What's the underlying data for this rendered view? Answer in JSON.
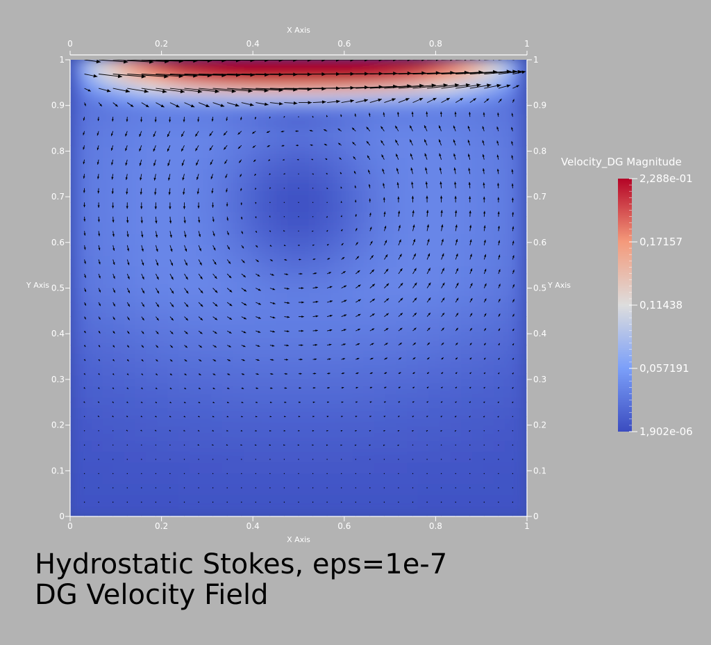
{
  "chart_data": {
    "type": "heatmap",
    "description_series": "velocity magnitude with glyph arrows",
    "title": "",
    "xlabel": "X Axis",
    "ylabel": "Y Axis",
    "xlim": [
      0,
      1
    ],
    "ylim": [
      0,
      1
    ],
    "x_ticks": [
      "0",
      "0.2",
      "0.4",
      "0.6",
      "0.8",
      "1"
    ],
    "y_ticks": [
      "0",
      "0.1",
      "0.2",
      "0.3",
      "0.4",
      "0.5",
      "0.6",
      "0.7",
      "0.8",
      "0.9",
      "1"
    ],
    "colorbar": {
      "title": "Velocity_DG Magnitude",
      "min": 1.902e-06,
      "max": 0.2288,
      "tick_labels": [
        "2,288e-01",
        "0,17157",
        "0,11438",
        "0,057191",
        "1,902e-06"
      ],
      "colormap": [
        "#3b4cc0",
        "#7b9ff9",
        "#dddddd",
        "#f49a7b",
        "#b40426"
      ]
    },
    "grid": false
  },
  "caption": {
    "line1": "Hydrostatic Stokes, eps=1e-7",
    "line2": "DG Velocity Field"
  },
  "colors": {
    "background": "#b3b3b3",
    "axes": "#ffffff",
    "arrows": "#000000"
  }
}
